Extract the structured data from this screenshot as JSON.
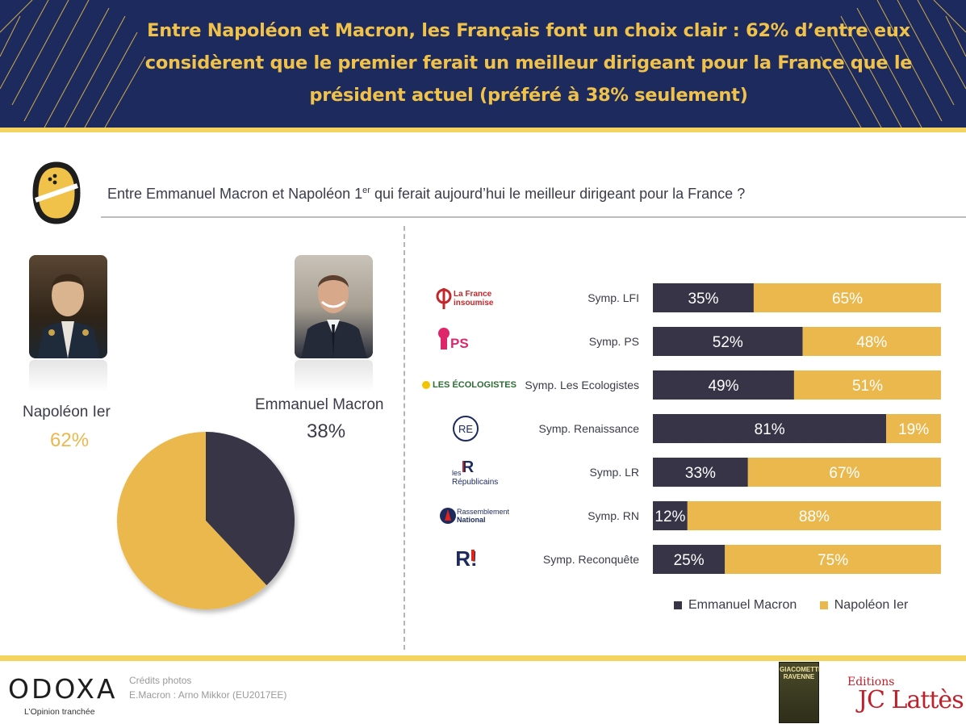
{
  "header": {
    "title": "Entre Napoléon et Macron, les Français font un choix clair : 62% d’entre eux considèrent que le premier ferait un meilleur dirigeant pour la France que le président actuel (préféré à 38% seulement)"
  },
  "question": {
    "before_sup": "Entre Emmanuel Macron et Napoléon 1",
    "sup": "er",
    "after_sup": " qui ferait aujourd’hui le meilleur dirigeant pour la France ?"
  },
  "colors": {
    "macron": "#373447",
    "napoleon": "#ebb84e",
    "header_bg": "#1c2a5e",
    "header_text": "#f0c24a"
  },
  "chart_data": [
    {
      "type": "pie",
      "slices": [
        {
          "name": "Napoléon Ier",
          "value": 62,
          "label": "62%"
        },
        {
          "name": "Emmanuel Macron",
          "value": 38,
          "label": "38%"
        }
      ]
    },
    {
      "type": "bar",
      "stacked": true,
      "orientation": "horizontal",
      "categories": [
        "Symp. LFI",
        "Symp. PS",
        "Symp. Les Ecologistes",
        "Symp. Renaissance",
        "Symp. LR",
        "Symp. RN",
        "Symp. Reconquête"
      ],
      "series": [
        {
          "name": "Emmanuel Macron",
          "values": [
            35,
            52,
            49,
            81,
            33,
            12,
            25
          ],
          "labels": [
            "35%",
            "52%",
            "49%",
            "81%",
            "33%",
            "12%",
            "25%"
          ]
        },
        {
          "name": "Napoléon Ier",
          "values": [
            65,
            48,
            51,
            19,
            67,
            88,
            75
          ],
          "labels": [
            "65%",
            "48%",
            "51%",
            "19%",
            "67%",
            "88%",
            "75%"
          ]
        }
      ],
      "legend": "bottom-right"
    }
  ],
  "party_logos": [
    {
      "icon": "lfi-logo",
      "text": "La France insoumise"
    },
    {
      "icon": "ps-logo",
      "text": "PS"
    },
    {
      "icon": "ecologistes-logo",
      "text": "LES ÉCOLOGISTES"
    },
    {
      "icon": "renaissance-logo",
      "text": "RE"
    },
    {
      "icon": "lr-logo",
      "text": "les Républicains"
    },
    {
      "icon": "rn-logo",
      "text": "Rassemblement National"
    },
    {
      "icon": "reconquete-logo",
      "text": "R!"
    }
  ],
  "footer": {
    "brand": "ODOXA",
    "tagline": "L’Opinion tranchée",
    "credits_title": "Crédits photos",
    "credits_line": "E.Macron : Arno Mikkor (EU2017EE)",
    "book_title": "GIACOMETTI RAVENNE",
    "publisher_top": "Editions",
    "publisher_name": "JC Lattès"
  }
}
